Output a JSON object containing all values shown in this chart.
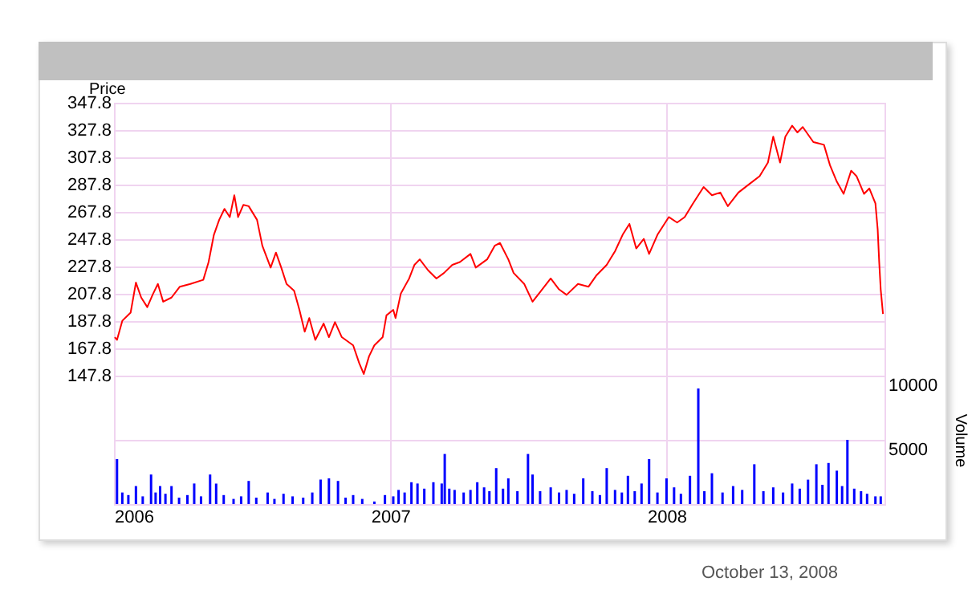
{
  "chart_data": [
    {
      "type": "line",
      "ylabel": "Price",
      "tick_labels": "y",
      "grid": true,
      "xlim": [
        "2006-01-01",
        "2008-10-15"
      ],
      "xticks": [
        "2006",
        "2007",
        "2008"
      ],
      "ylim": [
        147.8,
        347.8
      ],
      "yticks": [
        147.8,
        167.8,
        187.8,
        207.8,
        227.8,
        247.8,
        267.8,
        287.8,
        307.8,
        327.8,
        347.8
      ],
      "x": [
        "2006-01-02",
        "2006-01-05",
        "2006-01-12",
        "2006-01-23",
        "2006-01-30",
        "2006-02-06",
        "2006-02-14",
        "2006-02-21",
        "2006-02-28",
        "2006-03-07",
        "2006-03-18",
        "2006-03-29",
        "2006-04-12",
        "2006-04-29",
        "2006-05-06",
        "2006-05-13",
        "2006-05-20",
        "2006-05-27",
        "2006-06-03",
        "2006-06-09",
        "2006-06-14",
        "2006-06-21",
        "2006-06-28",
        "2006-07-09",
        "2006-07-16",
        "2006-07-27",
        "2006-08-03",
        "2006-08-10",
        "2006-08-17",
        "2006-08-27",
        "2006-09-03",
        "2006-09-10",
        "2006-09-16",
        "2006-09-24",
        "2006-10-05",
        "2006-10-12",
        "2006-10-20",
        "2006-10-29",
        "2006-11-13",
        "2006-11-21",
        "2006-11-27",
        "2006-12-04",
        "2006-12-11",
        "2006-12-22",
        "2006-12-27",
        "2007-01-05",
        "2007-01-08",
        "2007-01-15",
        "2007-01-26",
        "2007-02-02",
        "2007-02-09",
        "2007-02-20",
        "2007-03-03",
        "2007-03-13",
        "2007-03-24",
        "2007-04-03",
        "2007-04-17",
        "2007-04-24",
        "2007-05-09",
        "2007-05-19",
        "2007-05-26",
        "2007-06-06",
        "2007-06-13",
        "2007-06-27",
        "2007-07-08",
        "2007-07-18",
        "2007-08-01",
        "2007-08-12",
        "2007-08-22",
        "2007-09-06",
        "2007-09-20",
        "2007-09-30",
        "2007-10-14",
        "2007-10-25",
        "2007-11-04",
        "2007-11-13",
        "2007-11-22",
        "2007-12-02",
        "2007-12-09",
        "2007-12-20",
        "2008-01-04",
        "2008-01-15",
        "2008-01-25",
        "2008-02-05",
        "2008-02-19",
        "2008-03-01",
        "2008-03-12",
        "2008-03-22",
        "2008-04-05",
        "2008-04-19",
        "2008-05-03",
        "2008-05-14",
        "2008-05-21",
        "2008-05-30",
        "2008-06-06",
        "2008-06-15",
        "2008-06-22",
        "2008-06-29",
        "2008-07-13",
        "2008-07-27",
        "2008-08-04",
        "2008-08-13",
        "2008-08-22",
        "2008-09-01",
        "2008-09-08",
        "2008-09-18",
        "2008-09-25",
        "2008-10-03",
        "2008-10-06",
        "2008-10-08",
        "2008-10-10",
        "2008-10-13"
      ],
      "series": [
        {
          "color": "#ff0000",
          "values": [
            176,
            174,
            188,
            194,
            216,
            205,
            198,
            207,
            215,
            202,
            205,
            213,
            215,
            218,
            231,
            251,
            262,
            270,
            264,
            280,
            264,
            273,
            272,
            262,
            243,
            227,
            238,
            227,
            215,
            210,
            196,
            180,
            190,
            174,
            186,
            176,
            187,
            176,
            170,
            157,
            149,
            162,
            170,
            176,
            192,
            196,
            190,
            208,
            219,
            229,
            233,
            225,
            219,
            223,
            229,
            231,
            237,
            227,
            233,
            243,
            245,
            233,
            223,
            215,
            202,
            209,
            219,
            211,
            207,
            215,
            213,
            221,
            229,
            239,
            251,
            259,
            241,
            248,
            237,
            251,
            264,
            260,
            264,
            274,
            286,
            280,
            282,
            272,
            282,
            288,
            294,
            304,
            323,
            304,
            323,
            331,
            326,
            330,
            319,
            317,
            302,
            290,
            281,
            298,
            294,
            281,
            285,
            274,
            255,
            231,
            211,
            193
          ]
        }
      ]
    },
    {
      "type": "bar",
      "ylabel": "Volume",
      "grid": true,
      "xlim": [
        "2006-01-01",
        "2008-10-15"
      ],
      "xticks": [
        "2006",
        "2007",
        "2008"
      ],
      "ylim": [
        0,
        10000
      ],
      "yticks": [
        5000,
        10000
      ],
      "x": [
        "2006-01-05",
        "2006-01-12",
        "2006-01-20",
        "2006-01-30",
        "2006-02-08",
        "2006-02-19",
        "2006-02-25",
        "2006-03-03",
        "2006-03-10",
        "2006-03-18",
        "2006-03-28",
        "2006-04-08",
        "2006-04-17",
        "2006-04-26",
        "2006-05-08",
        "2006-05-16",
        "2006-05-26",
        "2006-06-08",
        "2006-06-18",
        "2006-06-28",
        "2006-07-08",
        "2006-07-23",
        "2006-08-01",
        "2006-08-13",
        "2006-08-25",
        "2006-09-08",
        "2006-09-20",
        "2006-10-01",
        "2006-10-12",
        "2006-10-24",
        "2006-11-03",
        "2006-11-13",
        "2006-11-25",
        "2006-12-11",
        "2006-12-25",
        "2007-01-05",
        "2007-01-12",
        "2007-01-20",
        "2007-01-29",
        "2007-02-06",
        "2007-02-15",
        "2007-02-27",
        "2007-03-10",
        "2007-03-14",
        "2007-03-20",
        "2007-03-27",
        "2007-04-08",
        "2007-04-17",
        "2007-04-26",
        "2007-05-05",
        "2007-05-12",
        "2007-05-21",
        "2007-05-30",
        "2007-06-06",
        "2007-06-18",
        "2007-07-02",
        "2007-07-08",
        "2007-07-18",
        "2007-08-01",
        "2007-08-12",
        "2007-08-22",
        "2007-09-01",
        "2007-09-13",
        "2007-09-25",
        "2007-10-05",
        "2007-10-14",
        "2007-10-25",
        "2007-11-03",
        "2007-11-11",
        "2007-11-20",
        "2007-11-29",
        "2007-12-09",
        "2007-12-20",
        "2008-01-01",
        "2008-01-11",
        "2008-01-20",
        "2008-02-01",
        "2008-02-12",
        "2008-02-20",
        "2008-03-01",
        "2008-03-15",
        "2008-03-29",
        "2008-04-10",
        "2008-04-26",
        "2008-05-08",
        "2008-05-21",
        "2008-06-03",
        "2008-06-15",
        "2008-06-25",
        "2008-07-06",
        "2008-07-17",
        "2008-07-25",
        "2008-08-02",
        "2008-08-13",
        "2008-08-20",
        "2008-08-27",
        "2008-09-05",
        "2008-09-14",
        "2008-09-22",
        "2008-10-03",
        "2008-10-10"
      ],
      "series": [
        {
          "color": "#0000ff",
          "values": [
            3500,
            900,
            700,
            1400,
            600,
            2300,
            900,
            1400,
            800,
            1400,
            500,
            700,
            1600,
            600,
            2300,
            1600,
            700,
            400,
            600,
            1800,
            500,
            900,
            400,
            800,
            600,
            500,
            900,
            1900,
            2000,
            1800,
            500,
            700,
            400,
            200,
            700,
            600,
            1100,
            900,
            1700,
            1600,
            1200,
            1700,
            1600,
            3900,
            1200,
            1100,
            900,
            1100,
            1700,
            1300,
            1000,
            2800,
            1200,
            2000,
            1000,
            3900,
            2300,
            1000,
            1300,
            900,
            1100,
            800,
            2000,
            1000,
            700,
            2800,
            1100,
            900,
            2200,
            1000,
            1600,
            3500,
            900,
            2000,
            1300,
            800,
            2200,
            9000,
            1000,
            2400,
            900,
            1400,
            1100,
            3100,
            1000,
            1300,
            900,
            1600,
            1200,
            1900,
            3100,
            1500,
            3200,
            2600,
            1400,
            5000,
            1200,
            1000,
            800,
            600,
            600
          ]
        }
      ],
      "annotations": [
        "October 13, 2008"
      ]
    }
  ]
}
